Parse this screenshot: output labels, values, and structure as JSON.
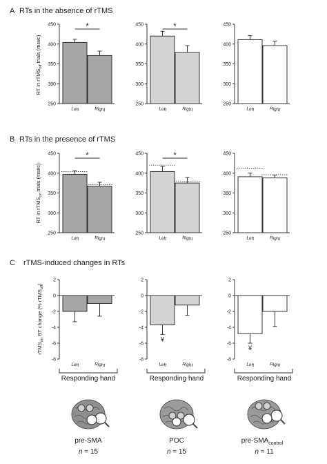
{
  "panels": [
    {
      "letter": "A",
      "title": "RTs in the absence of rTMS",
      "ylabel_pre": "RT in rTMS",
      "ylabel_sub": "off",
      "ylabel_post": " trials (msec)"
    },
    {
      "letter": "B",
      "title": "RTs in the presence of rTMS",
      "ylabel_pre": "RT in rTMS",
      "ylabel_sub": "on",
      "ylabel_post": " trials (msec)"
    },
    {
      "letter": "C",
      "title": "rTMS-induced changes in RTs",
      "ylabel_pre": "rTMS",
      "ylabel_sub": "on",
      "ylabel_mid": " RT change (% rTMS",
      "ylabel_sub2": "off",
      "ylabel_post": ")"
    }
  ],
  "groups": [
    {
      "name": "pre-SMA",
      "name_sub": "",
      "n_label": "n",
      "n_value": "= 15",
      "color": "#a6a6a6"
    },
    {
      "name": "POC",
      "name_sub": "",
      "n_label": "n",
      "n_value": "= 15",
      "color": "#d4d4d4"
    },
    {
      "name": "pre-SMA",
      "name_sub": "control",
      "n_label": "n",
      "n_value": "= 11",
      "color": "#ffffff"
    }
  ],
  "responding_hand": "Responding hand",
  "star_symbol": "*",
  "yen_symbol": "¥",
  "chart_data": [
    {
      "type": "bar",
      "panel": "A",
      "group": "pre-SMA",
      "categories": [
        "Left",
        "Right"
      ],
      "values": [
        404,
        371
      ],
      "errors": [
        8,
        11
      ],
      "ylim": [
        250,
        450
      ],
      "yticks": [
        250,
        300,
        350,
        400,
        450
      ],
      "significance": "*"
    },
    {
      "type": "bar",
      "panel": "A",
      "group": "POC",
      "categories": [
        "Left",
        "Right"
      ],
      "values": [
        420,
        379
      ],
      "errors": [
        12,
        17
      ],
      "ylim": [
        250,
        450
      ],
      "yticks": [
        250,
        300,
        350,
        400,
        450
      ],
      "significance": "*"
    },
    {
      "type": "bar",
      "panel": "A",
      "group": "pre-SMA control",
      "categories": [
        "Left",
        "Right"
      ],
      "values": [
        411,
        396
      ],
      "errors": [
        10,
        11
      ],
      "ylim": [
        250,
        450
      ],
      "yticks": [
        250,
        300,
        350,
        400,
        450
      ],
      "significance": ""
    },
    {
      "type": "bar",
      "panel": "B",
      "group": "pre-SMA",
      "categories": [
        "Left",
        "Right"
      ],
      "values": [
        397,
        367
      ],
      "errors": [
        9,
        10
      ],
      "baseline": [
        404,
        371
      ],
      "ylim": [
        250,
        450
      ],
      "yticks": [
        250,
        300,
        350,
        400,
        450
      ],
      "significance": "*"
    },
    {
      "type": "bar",
      "panel": "B",
      "group": "POC",
      "categories": [
        "Left",
        "Right"
      ],
      "values": [
        404,
        375
      ],
      "errors": [
        13,
        14
      ],
      "baseline": [
        420,
        379
      ],
      "ylim": [
        250,
        450
      ],
      "yticks": [
        250,
        300,
        350,
        400,
        450
      ],
      "significance": "*"
    },
    {
      "type": "bar",
      "panel": "B",
      "group": "pre-SMA control",
      "categories": [
        "Left",
        "Right"
      ],
      "values": [
        391,
        388
      ],
      "errors": [
        9,
        7
      ],
      "baseline": [
        411,
        396
      ],
      "ylim": [
        250,
        450
      ],
      "yticks": [
        250,
        300,
        350,
        400,
        450
      ],
      "significance": ""
    },
    {
      "type": "bar",
      "panel": "C",
      "group": "pre-SMA",
      "categories": [
        "Left",
        "Right"
      ],
      "values": [
        -2.0,
        -1.0
      ],
      "errors": [
        1.3,
        1.6
      ],
      "ylim": [
        -8,
        2
      ],
      "yticks": [
        -8,
        -6,
        -4,
        -2,
        0,
        2
      ],
      "marker": ""
    },
    {
      "type": "bar",
      "panel": "C",
      "group": "POC",
      "categories": [
        "Left",
        "Right"
      ],
      "values": [
        -3.7,
        -1.2
      ],
      "errors": [
        1.2,
        1.3
      ],
      "ylim": [
        -8,
        2
      ],
      "yticks": [
        -8,
        -6,
        -4,
        -2,
        0,
        2
      ],
      "marker": "¥"
    },
    {
      "type": "bar",
      "panel": "C",
      "group": "pre-SMA control",
      "categories": [
        "Left",
        "Right"
      ],
      "values": [
        -4.8,
        -2.0
      ],
      "errors": [
        1.2,
        1.9
      ],
      "ylim": [
        -8,
        2
      ],
      "yticks": [
        -8,
        -6,
        -4,
        -2,
        0,
        2
      ],
      "marker": "¥"
    }
  ]
}
